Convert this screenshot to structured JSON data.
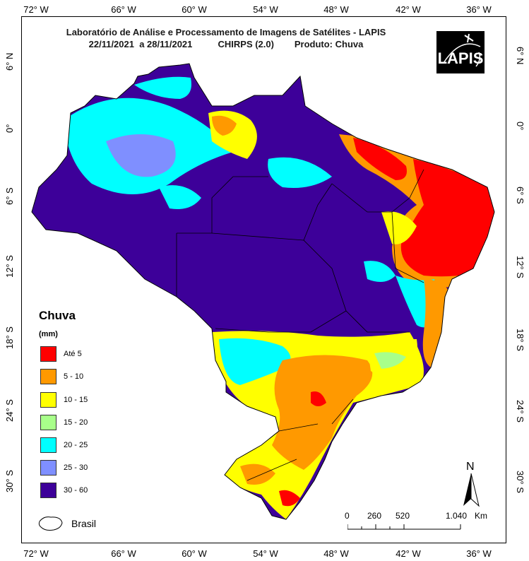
{
  "header": {
    "line1": "Laboratório de Análise e Processamento de Imagens de Satélites - LAPIS",
    "line2": "22/11/2021  a 28/11/2021          CHIRPS (2.0)        Produto: Chuva"
  },
  "logo_text": "LAPIS",
  "lon_ticks": [
    "72° W",
    "66° W",
    "60° W",
    "54° W",
    "48° W",
    "42° W",
    "36° W"
  ],
  "lat_ticks": [
    "6° N",
    "0°",
    "6° S",
    "12° S",
    "18° S",
    "24° S",
    "30° S"
  ],
  "legend": {
    "title": "Chuva",
    "unit": "(mm)",
    "classes": [
      {
        "label": "Até 5",
        "color": "#ff0000"
      },
      {
        "label": "5 - 10",
        "color": "#ff9900"
      },
      {
        "label": "10 - 15",
        "color": "#ffff00"
      },
      {
        "label": "15 - 20",
        "color": "#a8ff8a"
      },
      {
        "label": "20 - 25",
        "color": "#00ffff"
      },
      {
        "label": "25 - 30",
        "color": "#7f8fff"
      },
      {
        "label": "30 - 60",
        "color": "#3d0099"
      }
    ],
    "boundary_label": "Brasil"
  },
  "scale_bar": {
    "ticks": [
      "0",
      "260",
      "520",
      "1.040"
    ],
    "unit": "Km"
  },
  "north_label": "N"
}
